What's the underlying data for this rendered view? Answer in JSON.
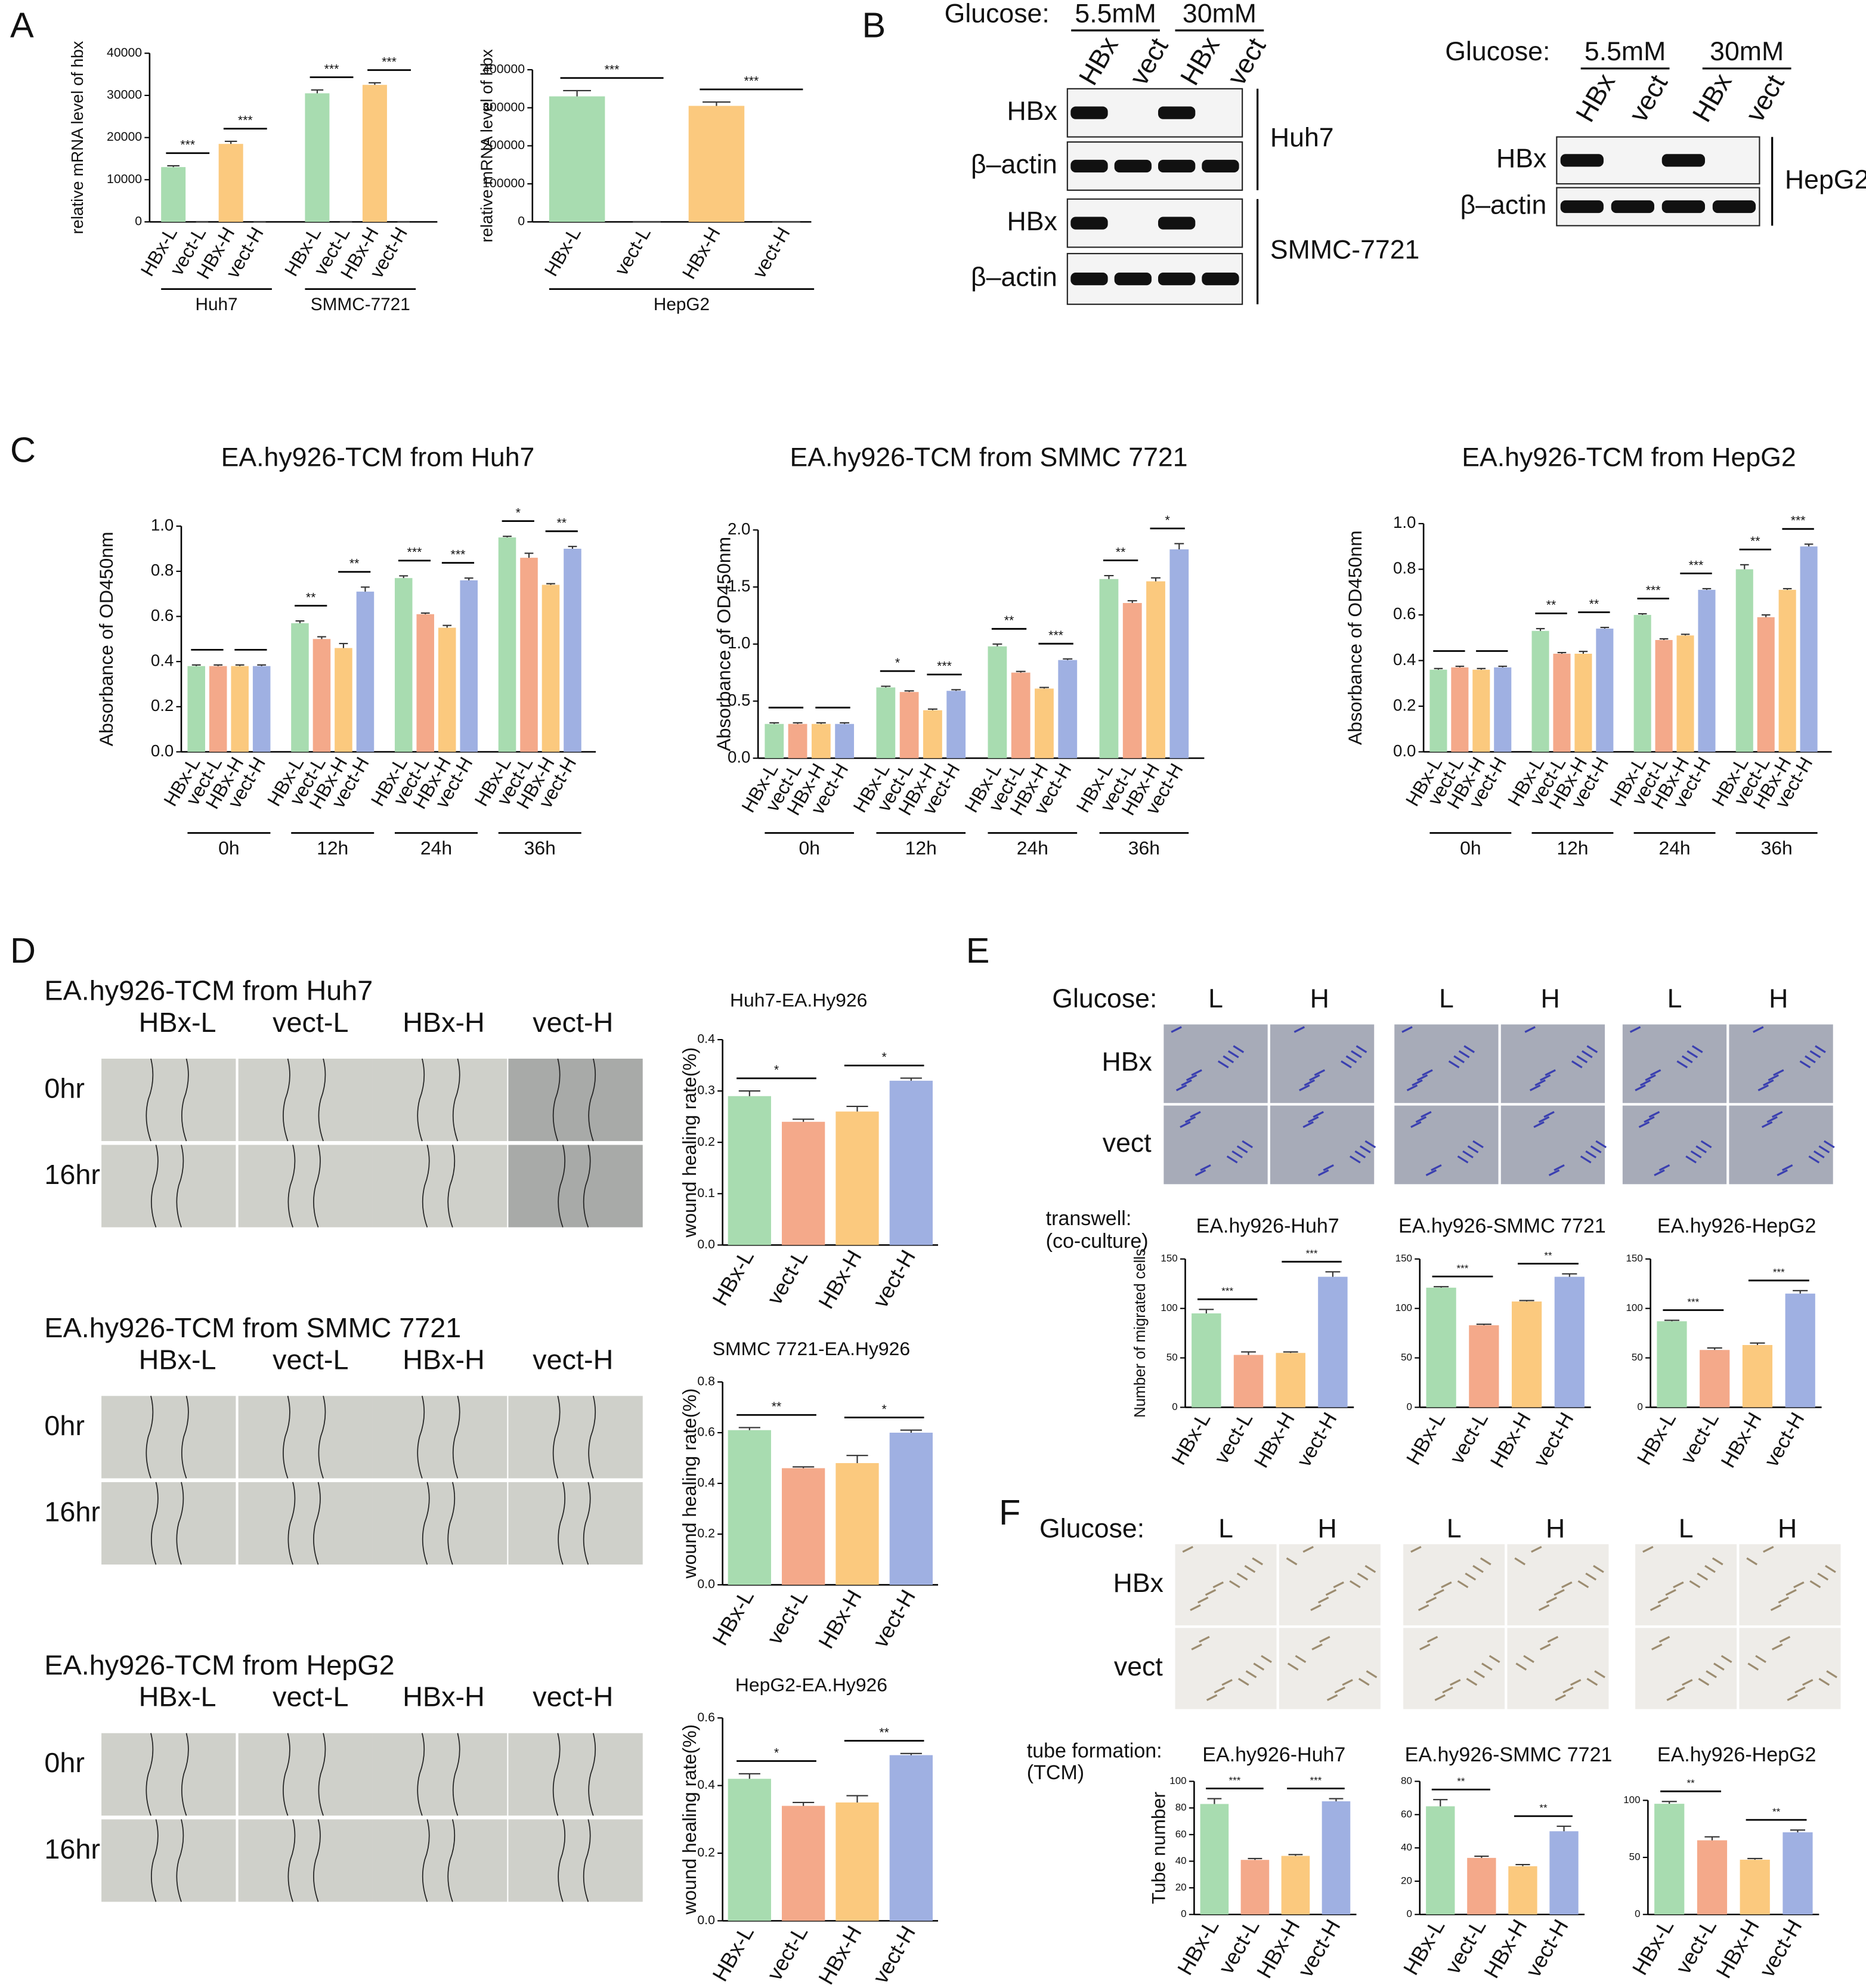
{
  "labels": {
    "panels": [
      "A",
      "B",
      "C",
      "D",
      "E",
      "F"
    ],
    "blots": [
      {
        "glucose": "Glucose:",
        "conditions": [
          "5.5mM",
          "30mM"
        ],
        "lanes": [
          "HBx",
          "vect",
          "HBx",
          "vect"
        ],
        "rows": [
          "HBx",
          "β–actin",
          "HBx",
          "β–actin"
        ],
        "cells": [
          "Huh7",
          "SMMC-7721"
        ]
      },
      {
        "glucose": "Glucose:",
        "conditions": [
          "5.5mM",
          "30mM"
        ],
        "lanes": [
          "HBx",
          "vect",
          "HBx",
          "vect"
        ],
        "rows": [
          "HBx",
          "β–actin"
        ],
        "cells": [
          "HepG2"
        ]
      }
    ],
    "wound": {
      "sections": [
        "EA.hy926-TCM from Huh7",
        "EA.hy926-TCM from SMMC 7721",
        "EA.hy926-TCM from HepG2"
      ],
      "columns": [
        "HBx-L",
        "vect-L",
        "HBx-H",
        "vect-H"
      ],
      "times": [
        "0hr",
        "16hr"
      ]
    },
    "transwell": {
      "glucose": "Glucose:",
      "levels": [
        "L",
        "H"
      ],
      "rows": [
        "HBx",
        "vect"
      ],
      "note": [
        "transwell:",
        "(co-culture)"
      ]
    },
    "tube": {
      "glucose": "Glucose:",
      "levels": [
        "L",
        "H"
      ],
      "rows": [
        "HBx",
        "vect"
      ],
      "note": [
        "tube formation:",
        "(TCM)"
      ]
    }
  },
  "chart_data": [
    {
      "type": "bar",
      "ylabel": "relative mRNA level of hbx",
      "categories": [
        "Huh7",
        "SMMC-7721"
      ],
      "series": [
        {
          "name": "HBx-L",
          "color": "#a8dcb0",
          "values": [
            13000,
            30500
          ],
          "errors": [
            300,
            800
          ]
        },
        {
          "name": "vect-L",
          "color": "#f4a98a",
          "values": [
            0,
            0
          ],
          "errors": [
            0,
            0
          ]
        },
        {
          "name": "HBx-H",
          "color": "#fbc97e",
          "values": [
            18500,
            32500
          ],
          "errors": [
            600,
            500
          ]
        },
        {
          "name": "vect-H",
          "color": "#9fb0e2",
          "values": [
            0,
            0
          ],
          "errors": [
            0,
            0
          ]
        }
      ],
      "significance": [
        [
          "***",
          "***"
        ],
        [
          "***",
          "***"
        ]
      ],
      "ylim": [
        0,
        40000
      ],
      "yticks": [
        0,
        10000,
        20000,
        30000,
        40000
      ]
    },
    {
      "type": "bar",
      "ylabel": "relative mRNA level of hbx",
      "categories": [
        "HepG2"
      ],
      "series": [
        {
          "name": "HBx-L",
          "color": "#a8dcb0",
          "values": [
            330000
          ],
          "errors": [
            15000
          ]
        },
        {
          "name": "vect-L",
          "color": "#f4a98a",
          "values": [
            0
          ],
          "errors": [
            0
          ]
        },
        {
          "name": "HBx-H",
          "color": "#fbc97e",
          "values": [
            305000
          ],
          "errors": [
            10000
          ]
        },
        {
          "name": "vect-H",
          "color": "#9fb0e2",
          "values": [
            0
          ],
          "errors": [
            0
          ]
        }
      ],
      "significance": [
        [
          "***",
          "***"
        ]
      ],
      "ylim": [
        0,
        400000
      ],
      "yticks": [
        0,
        100000,
        200000,
        300000,
        400000
      ]
    },
    {
      "type": "bar",
      "title": "EA.hy926-TCM from Huh7",
      "ylabel": "Absorbance of OD450nm",
      "categories": [
        "0h",
        "12h",
        "24h",
        "36h"
      ],
      "series": [
        {
          "name": "HBx-L",
          "color": "#a8dcb0",
          "values": [
            0.38,
            0.57,
            0.77,
            0.95
          ],
          "errors": [
            0.005,
            0.01,
            0.01,
            0.005
          ]
        },
        {
          "name": "vect-L",
          "color": "#f4a98a",
          "values": [
            0.38,
            0.5,
            0.61,
            0.86
          ],
          "errors": [
            0.005,
            0.01,
            0.005,
            0.02
          ]
        },
        {
          "name": "HBx-H",
          "color": "#fbc97e",
          "values": [
            0.38,
            0.46,
            0.55,
            0.74
          ],
          "errors": [
            0.005,
            0.02,
            0.01,
            0.005
          ]
        },
        {
          "name": "vect-H",
          "color": "#9fb0e2",
          "values": [
            0.38,
            0.71,
            0.76,
            0.9
          ],
          "errors": [
            0.005,
            0.02,
            0.01,
            0.01
          ]
        }
      ],
      "significance": [
        null,
        [
          "**",
          "**"
        ],
        [
          "***",
          "***"
        ],
        [
          "*",
          "**"
        ]
      ],
      "ylim": [
        0,
        1
      ],
      "yticks": [
        {
          "value": 0,
          "label": "0.0"
        },
        0.2,
        0.4,
        0.6,
        0.8,
        {
          "value": 1,
          "label": "1.0"
        }
      ]
    },
    {
      "type": "bar",
      "title": "EA.hy926-TCM from SMMC 7721",
      "ylabel": "Absorbance of OD450nm",
      "categories": [
        "0h",
        "12h",
        "24h",
        "36h"
      ],
      "series": [
        {
          "name": "HBx-L",
          "color": "#a8dcb0",
          "values": [
            0.3,
            0.62,
            0.98,
            1.57
          ],
          "errors": [
            0.01,
            0.01,
            0.02,
            0.03
          ]
        },
        {
          "name": "vect-L",
          "color": "#f4a98a",
          "values": [
            0.3,
            0.58,
            0.75,
            1.36
          ],
          "errors": [
            0.01,
            0.01,
            0.01,
            0.02
          ]
        },
        {
          "name": "HBx-H",
          "color": "#fbc97e",
          "values": [
            0.3,
            0.42,
            0.61,
            1.55
          ],
          "errors": [
            0.01,
            0.01,
            0.01,
            0.03
          ]
        },
        {
          "name": "vect-H",
          "color": "#9fb0e2",
          "values": [
            0.3,
            0.59,
            0.86,
            1.83
          ],
          "errors": [
            0.01,
            0.01,
            0.01,
            0.05
          ]
        }
      ],
      "significance": [
        null,
        [
          "*",
          "***"
        ],
        [
          "**",
          "***"
        ],
        [
          "**",
          "*"
        ]
      ],
      "ylim": [
        0,
        2
      ],
      "yticks": [
        {
          "value": 0,
          "label": "0.0"
        },
        0.5,
        {
          "value": 1,
          "label": "1.0"
        },
        1.5,
        {
          "value": 2,
          "label": "2.0"
        }
      ]
    },
    {
      "type": "bar",
      "title": "EA.hy926-TCM from HepG2",
      "ylabel": "Absorbance of OD450nm",
      "categories": [
        "0h",
        "12h",
        "24h",
        "36h"
      ],
      "series": [
        {
          "name": "HBx-L",
          "color": "#a8dcb0",
          "values": [
            0.36,
            0.53,
            0.6,
            0.8
          ],
          "errors": [
            0.005,
            0.01,
            0.005,
            0.02
          ]
        },
        {
          "name": "vect-L",
          "color": "#f4a98a",
          "values": [
            0.37,
            0.43,
            0.49,
            0.59
          ],
          "errors": [
            0.005,
            0.005,
            0.005,
            0.01
          ]
        },
        {
          "name": "HBx-H",
          "color": "#fbc97e",
          "values": [
            0.36,
            0.43,
            0.51,
            0.71
          ],
          "errors": [
            0.005,
            0.01,
            0.005,
            0.005
          ]
        },
        {
          "name": "vect-H",
          "color": "#9fb0e2",
          "values": [
            0.37,
            0.54,
            0.71,
            0.9
          ],
          "errors": [
            0.005,
            0.005,
            0.005,
            0.01
          ]
        }
      ],
      "significance": [
        null,
        [
          "**",
          "**"
        ],
        [
          "***",
          "***"
        ],
        [
          "**",
          "***"
        ]
      ],
      "ylim": [
        0,
        1
      ],
      "yticks": [
        {
          "value": 0,
          "label": "0.0"
        },
        0.2,
        0.4,
        0.6,
        0.8,
        {
          "value": 1,
          "label": "1.0"
        }
      ]
    },
    {
      "type": "bar",
      "title": "Huh7-EA.Hy926",
      "ylabel": "wound healing rate(%)",
      "categories": [
        "HBx-L",
        "vect-L",
        "HBx-H",
        "vect-H"
      ],
      "values": [
        0.29,
        0.24,
        0.26,
        0.32
      ],
      "errors": [
        0.01,
        0.005,
        0.01,
        0.005
      ],
      "colors": [
        "#a8dcb0",
        "#f4a98a",
        "#fbc97e",
        "#9fb0e2"
      ],
      "significance": [
        "*",
        "*"
      ],
      "ylim": [
        0,
        0.4
      ],
      "yticks": [
        {
          "value": 0,
          "label": "0.0"
        },
        0.1,
        0.2,
        0.3,
        0.4
      ]
    },
    {
      "type": "bar",
      "title": "SMMC 7721-EA.Hy926",
      "ylabel": "wound healing rate(%)",
      "categories": [
        "HBx-L",
        "vect-L",
        "HBx-H",
        "vect-H"
      ],
      "values": [
        0.61,
        0.46,
        0.48,
        0.6
      ],
      "errors": [
        0.01,
        0.005,
        0.03,
        0.01
      ],
      "colors": [
        "#a8dcb0",
        "#f4a98a",
        "#fbc97e",
        "#9fb0e2"
      ],
      "significance": [
        "**",
        "*"
      ],
      "ylim": [
        0,
        0.8
      ],
      "yticks": [
        {
          "value": 0,
          "label": "0.0"
        },
        0.2,
        0.4,
        0.6,
        0.8
      ]
    },
    {
      "type": "bar",
      "title": "HepG2-EA.Hy926",
      "ylabel": "wound healing rate(%)",
      "categories": [
        "HBx-L",
        "vect-L",
        "HBx-H",
        "vect-H"
      ],
      "values": [
        0.42,
        0.34,
        0.35,
        0.49
      ],
      "errors": [
        0.015,
        0.01,
        0.02,
        0.005
      ],
      "colors": [
        "#a8dcb0",
        "#f4a98a",
        "#fbc97e",
        "#9fb0e2"
      ],
      "significance": [
        "*",
        "**"
      ],
      "ylim": [
        0,
        0.6
      ],
      "yticks": [
        {
          "value": 0,
          "label": "0.0"
        },
        0.2,
        0.4,
        0.6
      ]
    },
    {
      "type": "bar",
      "title": "EA.hy926-Huh7",
      "ylabel": "Number of migrated cells",
      "categories": [
        "HBx-L",
        "vect-L",
        "HBx-H",
        "vect-H"
      ],
      "values": [
        95,
        53,
        55,
        132
      ],
      "errors": [
        4,
        3,
        1,
        5
      ],
      "colors": [
        "#a8dcb0",
        "#f4a98a",
        "#fbc97e",
        "#9fb0e2"
      ],
      "significance": [
        "***",
        "***"
      ],
      "ylim": [
        0,
        150
      ],
      "yticks": [
        0,
        50,
        100,
        150
      ]
    },
    {
      "type": "bar",
      "title": "EA.hy926-SMMC 7721",
      "categories": [
        "HBx-L",
        "vect-L",
        "HBx-H",
        "vect-H"
      ],
      "values": [
        121,
        83,
        107,
        132
      ],
      "errors": [
        1,
        1,
        1,
        3
      ],
      "colors": [
        "#a8dcb0",
        "#f4a98a",
        "#fbc97e",
        "#9fb0e2"
      ],
      "significance": [
        "***",
        "**"
      ],
      "ylim": [
        0,
        150
      ],
      "yticks": [
        0,
        50,
        100,
        150
      ]
    },
    {
      "type": "bar",
      "title": "EA.hy926-HepG2",
      "categories": [
        "HBx-L",
        "vect-L",
        "HBx-H",
        "vect-H"
      ],
      "values": [
        87,
        58,
        63,
        115
      ],
      "errors": [
        1,
        2,
        2,
        3
      ],
      "colors": [
        "#a8dcb0",
        "#f4a98a",
        "#fbc97e",
        "#9fb0e2"
      ],
      "significance": [
        "***",
        "***"
      ],
      "ylim": [
        0,
        150
      ],
      "yticks": [
        0,
        50,
        100,
        150
      ]
    },
    {
      "type": "bar",
      "title": "EA.hy926-Huh7",
      "ylabel": "Tube number",
      "categories": [
        "HBx-L",
        "vect-L",
        "HBx-H",
        "vect-H"
      ],
      "values": [
        83,
        41,
        44,
        85
      ],
      "errors": [
        4,
        1,
        1,
        2
      ],
      "colors": [
        "#a8dcb0",
        "#f4a98a",
        "#fbc97e",
        "#9fb0e2"
      ],
      "significance": [
        "***",
        "***"
      ],
      "ylim": [
        0,
        100
      ],
      "yticks": [
        0,
        20,
        40,
        60,
        80,
        100
      ]
    },
    {
      "type": "bar",
      "title": "EA.hy926-SMMC 7721",
      "categories": [
        "HBx-L",
        "vect-L",
        "HBx-H",
        "vect-H"
      ],
      "values": [
        65,
        34,
        29,
        50
      ],
      "errors": [
        4,
        1,
        1,
        3
      ],
      "colors": [
        "#a8dcb0",
        "#f4a98a",
        "#fbc97e",
        "#9fb0e2"
      ],
      "significance": [
        "**",
        "**"
      ],
      "ylim": [
        0,
        80
      ],
      "yticks": [
        0,
        20,
        40,
        60,
        80
      ]
    },
    {
      "type": "bar",
      "title": "EA.hy926-HepG2",
      "categories": [
        "HBx-L",
        "vect-L",
        "HBx-H",
        "vect-H"
      ],
      "values": [
        97,
        65,
        48,
        72
      ],
      "errors": [
        2,
        3,
        1,
        2
      ],
      "colors": [
        "#a8dcb0",
        "#f4a98a",
        "#fbc97e",
        "#9fb0e2"
      ],
      "significance": [
        "**",
        "**"
      ],
      "ylim": [
        0,
        100
      ],
      "yticks": [
        0,
        50,
        100
      ]
    }
  ]
}
